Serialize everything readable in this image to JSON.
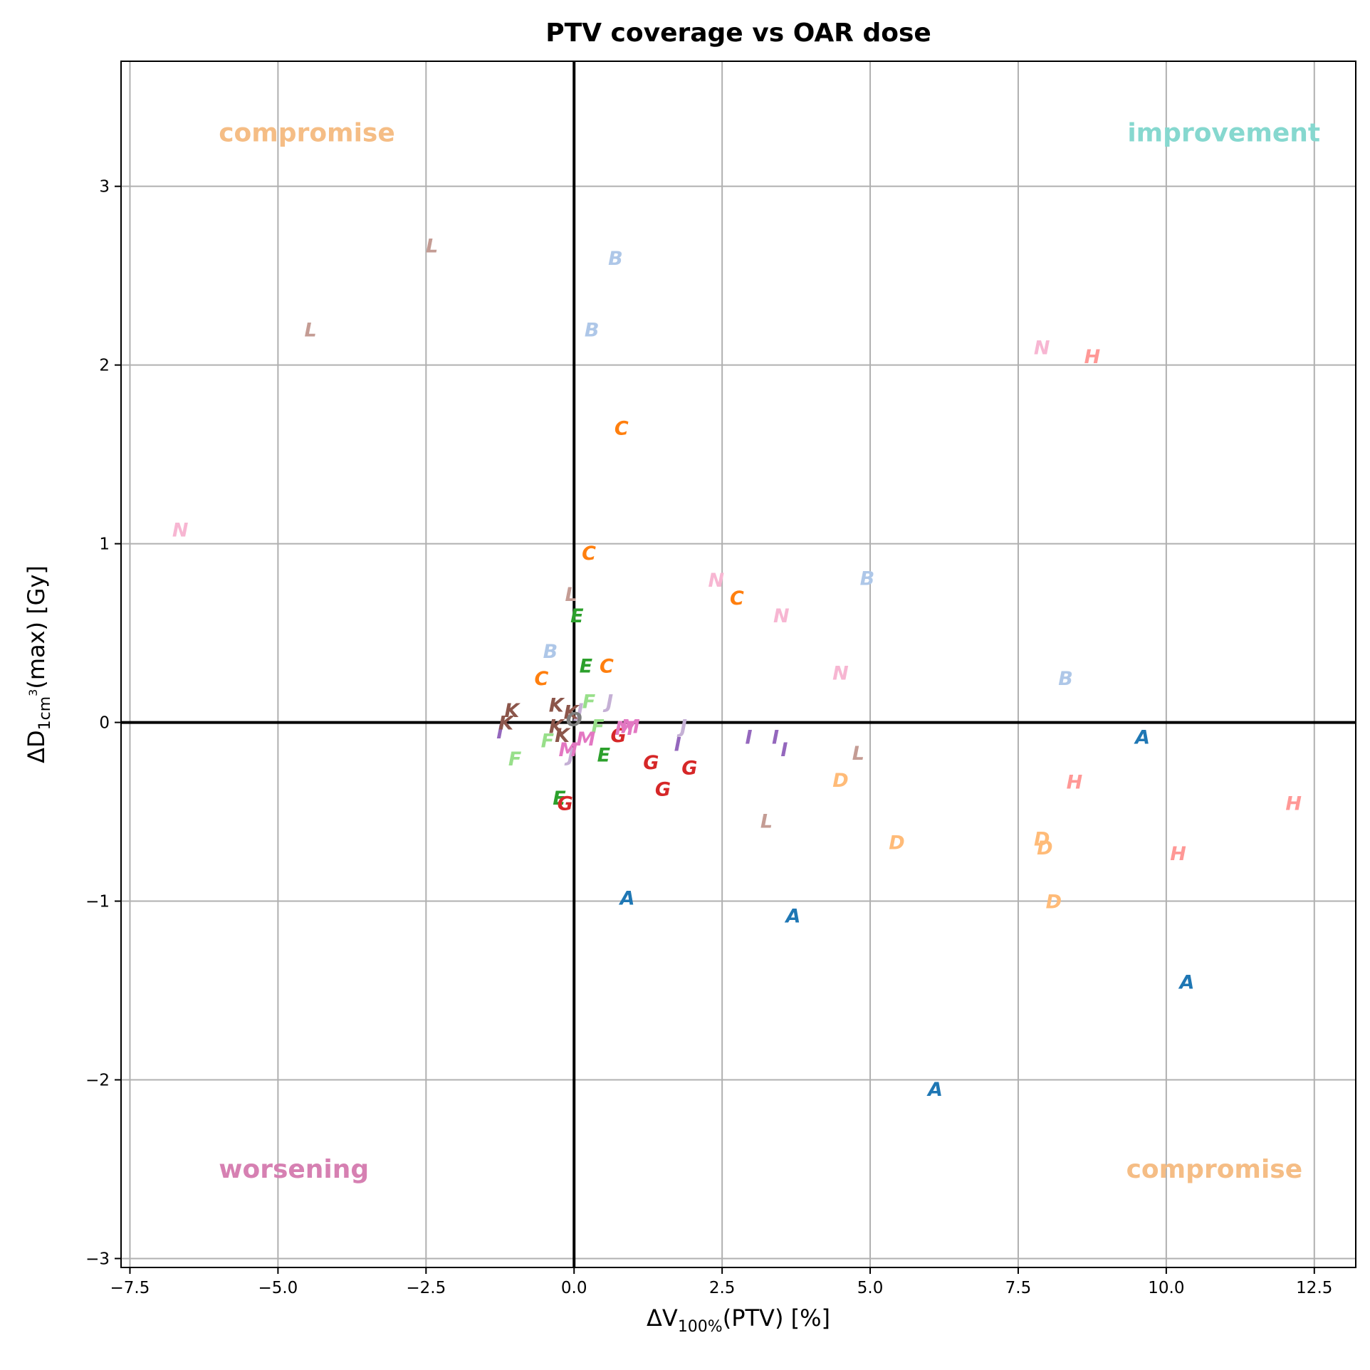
{
  "chart_data": {
    "type": "scatter",
    "title": "PTV coverage vs OAR dose",
    "xlabel_parts": [
      "ΔV",
      "100%",
      "(PTV) [%]"
    ],
    "ylabel_parts": [
      "ΔD",
      "1cm",
      "3",
      "(max) [Gy]"
    ],
    "xlim": [
      -7.65,
      13.2
    ],
    "ylim": [
      -3.05,
      3.7
    ],
    "xticks": [
      -7.5,
      -5.0,
      -2.5,
      0.0,
      2.5,
      5.0,
      7.5,
      10.0,
      12.5
    ],
    "xtick_labels": [
      "−7.5",
      "−5.0",
      "−2.5",
      "0.0",
      "2.5",
      "5.0",
      "7.5",
      "10.0",
      "12.5"
    ],
    "yticks": [
      -3,
      -2,
      -1,
      0,
      1,
      2,
      3
    ],
    "ytick_labels": [
      "−3",
      "−2",
      "−1",
      "0",
      "1",
      "2",
      "3"
    ],
    "grid": true,
    "quadrant_labels": [
      {
        "text": "compromise",
        "x": -6.0,
        "y": 3.3,
        "anchor": "start",
        "color": "#f5bd85"
      },
      {
        "text": "improvement",
        "x": 12.6,
        "y": 3.3,
        "anchor": "end",
        "color": "#86d8cf"
      },
      {
        "text": "worsening",
        "x": -6.0,
        "y": -2.5,
        "anchor": "start",
        "color": "#d680b2"
      },
      {
        "text": "compromise",
        "x": 12.3,
        "y": -2.5,
        "anchor": "end",
        "color": "#f5bd85"
      }
    ],
    "series": [
      {
        "name": "A",
        "color": "#1f77b4",
        "points": [
          [
            0.9,
            -0.98
          ],
          [
            3.7,
            -1.08
          ],
          [
            6.1,
            -2.05
          ],
          [
            9.6,
            -0.08
          ],
          [
            10.35,
            -1.45
          ]
        ]
      },
      {
        "name": "B",
        "color": "#aec7e8",
        "points": [
          [
            0.7,
            2.6
          ],
          [
            0.3,
            2.2
          ],
          [
            -0.4,
            0.4
          ],
          [
            4.95,
            0.81
          ],
          [
            8.3,
            0.25
          ]
        ]
      },
      {
        "name": "C",
        "color": "#ff7f0e",
        "points": [
          [
            0.8,
            1.65
          ],
          [
            0.25,
            0.95
          ],
          [
            -0.55,
            0.25
          ],
          [
            0.55,
            0.32
          ],
          [
            2.75,
            0.7
          ]
        ]
      },
      {
        "name": "D",
        "color": "#ffbb78",
        "points": [
          [
            4.5,
            -0.32
          ],
          [
            5.45,
            -0.67
          ],
          [
            7.9,
            -0.65
          ],
          [
            7.95,
            -0.7
          ],
          [
            8.1,
            -1.0
          ]
        ]
      },
      {
        "name": "E",
        "color": "#2ca02c",
        "points": [
          [
            0.05,
            0.6
          ],
          [
            0.2,
            0.32
          ],
          [
            -0.25,
            -0.42
          ],
          [
            0.5,
            -0.18
          ]
        ]
      },
      {
        "name": "F",
        "color": "#98df8a",
        "points": [
          [
            0.25,
            0.12
          ],
          [
            0.4,
            -0.02
          ],
          [
            -0.45,
            -0.1
          ],
          [
            -1.0,
            -0.2
          ]
        ]
      },
      {
        "name": "G",
        "color": "#d62728",
        "points": [
          [
            0.75,
            -0.07
          ],
          [
            1.3,
            -0.22
          ],
          [
            1.95,
            -0.25
          ],
          [
            1.5,
            -0.37
          ],
          [
            -0.15,
            -0.45
          ]
        ]
      },
      {
        "name": "H",
        "color": "#ff9896",
        "points": [
          [
            8.75,
            2.05
          ],
          [
            8.45,
            -0.33
          ],
          [
            10.2,
            -0.73
          ],
          [
            12.15,
            -0.45
          ]
        ]
      },
      {
        "name": "I",
        "color": "#9467bd",
        "points": [
          [
            -1.25,
            -0.05
          ],
          [
            1.75,
            -0.12
          ],
          [
            2.95,
            -0.08
          ],
          [
            3.4,
            -0.08
          ],
          [
            3.55,
            -0.15
          ]
        ]
      },
      {
        "name": "J",
        "color": "#c5b0d5",
        "points": [
          [
            0.6,
            0.12
          ],
          [
            1.85,
            -0.02
          ],
          [
            -0.05,
            -0.18
          ],
          [
            0.1,
            0.07
          ]
        ]
      },
      {
        "name": "K",
        "color": "#8c564b",
        "points": [
          [
            -1.05,
            0.07
          ],
          [
            -0.3,
            0.1
          ],
          [
            -0.05,
            0.06
          ],
          [
            -0.3,
            -0.02
          ],
          [
            -1.15,
            0.0
          ],
          [
            -0.2,
            -0.07
          ]
        ]
      },
      {
        "name": "L",
        "color": "#c49c94",
        "points": [
          [
            -2.4,
            2.67
          ],
          [
            -4.45,
            2.2
          ],
          [
            -0.05,
            0.72
          ],
          [
            4.8,
            -0.17
          ],
          [
            3.25,
            -0.55
          ]
        ]
      },
      {
        "name": "M",
        "color": "#e377c2",
        "points": [
          [
            0.95,
            -0.02
          ],
          [
            0.85,
            -0.03
          ],
          [
            0.2,
            -0.09
          ],
          [
            -0.1,
            -0.15
          ]
        ]
      },
      {
        "name": "N",
        "color": "#f7b6d2",
        "points": [
          [
            -6.65,
            1.08
          ],
          [
            2.4,
            0.8
          ],
          [
            3.5,
            0.6
          ],
          [
            4.5,
            0.28
          ],
          [
            7.9,
            2.1
          ]
        ]
      },
      {
        "name": "O",
        "color": "#7f7f7f",
        "points": [
          [
            0.0,
            0.02
          ]
        ]
      }
    ]
  }
}
